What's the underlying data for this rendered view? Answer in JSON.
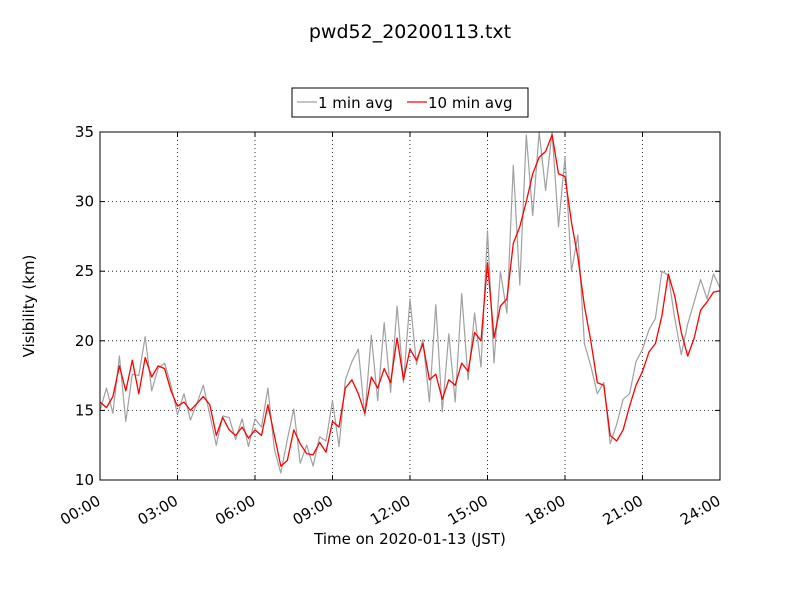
{
  "chart_data": {
    "type": "line",
    "title": "pwd52_20200113.txt",
    "xlabel": "Time on 2020-01-13 (JST)",
    "ylabel": "Visibility (km)",
    "x_unit": "hours",
    "xlim": [
      0,
      24
    ],
    "ylim": [
      10,
      35
    ],
    "grid": true,
    "legend_position": "top-center",
    "x_ticks": [
      0,
      3,
      6,
      9,
      12,
      15,
      18,
      21,
      24
    ],
    "x_tick_labels": [
      "00:00",
      "03:00",
      "06:00",
      "09:00",
      "12:00",
      "15:00",
      "18:00",
      "21:00",
      "24:00"
    ],
    "y_ticks": [
      10,
      15,
      20,
      25,
      30,
      35
    ],
    "y_tick_labels": [
      "10",
      "15",
      "20",
      "25",
      "30",
      "35"
    ],
    "series": [
      {
        "name": "1 min avg",
        "color": "#a0a0a0",
        "x": [
          0.0,
          0.25,
          0.5,
          0.75,
          1.0,
          1.25,
          1.5,
          1.75,
          2.0,
          2.25,
          2.5,
          2.75,
          3.0,
          3.25,
          3.5,
          3.75,
          4.0,
          4.25,
          4.5,
          4.75,
          5.0,
          5.25,
          5.5,
          5.75,
          6.0,
          6.25,
          6.5,
          6.75,
          7.0,
          7.25,
          7.5,
          7.75,
          8.0,
          8.25,
          8.5,
          8.75,
          9.0,
          9.25,
          9.5,
          9.75,
          10.0,
          10.25,
          10.5,
          10.75,
          11.0,
          11.25,
          11.5,
          11.75,
          12.0,
          12.25,
          12.5,
          12.75,
          13.0,
          13.25,
          13.5,
          13.75,
          14.0,
          14.25,
          14.5,
          14.75,
          15.0,
          15.25,
          15.5,
          15.75,
          16.0,
          16.25,
          16.5,
          16.75,
          17.0,
          17.25,
          17.5,
          17.75,
          18.0,
          18.25,
          18.5,
          18.75,
          19.0,
          19.25,
          19.5,
          19.75,
          20.0,
          20.25,
          20.5,
          20.75,
          21.0,
          21.25,
          21.5,
          21.75,
          22.0,
          22.25,
          22.5,
          22.75,
          23.0,
          23.25,
          23.5,
          23.75,
          24.0
        ],
        "y": [
          15.0,
          16.6,
          14.8,
          18.9,
          14.2,
          17.6,
          17.5,
          20.3,
          16.4,
          18.0,
          18.4,
          16.8,
          14.7,
          16.2,
          14.3,
          15.5,
          16.8,
          14.7,
          12.5,
          14.6,
          14.5,
          12.9,
          14.4,
          12.4,
          14.4,
          13.8,
          16.6,
          12.2,
          10.5,
          12.9,
          15.1,
          11.2,
          12.5,
          11.0,
          13.1,
          12.8,
          15.7,
          12.4,
          17.2,
          18.5,
          19.4,
          14.6,
          20.4,
          15.7,
          21.3,
          16.3,
          22.5,
          17.0,
          23.0,
          18.3,
          20.1,
          15.6,
          22.6,
          14.9,
          20.5,
          15.6,
          23.4,
          17.2,
          22.0,
          18.1,
          27.9,
          18.4,
          25.0,
          22.0,
          32.6,
          24.0,
          34.8,
          29.0,
          35.0,
          30.8,
          35.0,
          28.2,
          33.2,
          25.0,
          27.6,
          19.8,
          18.2,
          16.2,
          17.0,
          12.6,
          14.0,
          15.8,
          16.2,
          18.5,
          19.4,
          20.8,
          21.6,
          25.0,
          24.7,
          21.6,
          19.0,
          21.2,
          22.8,
          24.4,
          23.0,
          24.8,
          23.8
        ]
      },
      {
        "name": "10 min avg",
        "color": "#ff0000",
        "x": [
          0.0,
          0.25,
          0.5,
          0.75,
          1.0,
          1.25,
          1.5,
          1.75,
          2.0,
          2.25,
          2.5,
          2.75,
          3.0,
          3.25,
          3.5,
          3.75,
          4.0,
          4.25,
          4.5,
          4.75,
          5.0,
          5.25,
          5.5,
          5.75,
          6.0,
          6.25,
          6.5,
          6.75,
          7.0,
          7.25,
          7.5,
          7.75,
          8.0,
          8.25,
          8.5,
          8.75,
          9.0,
          9.25,
          9.5,
          9.75,
          10.0,
          10.25,
          10.5,
          10.75,
          11.0,
          11.25,
          11.5,
          11.75,
          12.0,
          12.25,
          12.5,
          12.75,
          13.0,
          13.25,
          13.5,
          13.75,
          14.0,
          14.25,
          14.5,
          14.75,
          15.0,
          15.25,
          15.5,
          15.75,
          16.0,
          16.25,
          16.5,
          16.75,
          17.0,
          17.25,
          17.5,
          17.75,
          18.0,
          18.25,
          18.5,
          18.75,
          19.0,
          19.25,
          19.5,
          19.75,
          20.0,
          20.25,
          20.5,
          20.75,
          21.0,
          21.25,
          21.5,
          21.75,
          22.0,
          22.25,
          22.5,
          22.75,
          23.0,
          23.25,
          23.5,
          23.75,
          24.0
        ],
        "y": [
          15.6,
          15.2,
          16.0,
          18.2,
          16.4,
          18.6,
          16.2,
          18.8,
          17.4,
          18.2,
          18.0,
          16.4,
          15.3,
          15.6,
          15.0,
          15.5,
          16.0,
          15.4,
          13.2,
          14.5,
          13.6,
          13.2,
          13.8,
          13.0,
          13.6,
          13.2,
          15.4,
          13.2,
          11.0,
          11.4,
          13.6,
          12.6,
          11.9,
          11.8,
          12.7,
          12.0,
          14.2,
          13.8,
          16.6,
          17.2,
          16.2,
          14.8,
          17.4,
          16.6,
          18.0,
          17.0,
          20.2,
          17.2,
          19.4,
          18.6,
          19.8,
          17.2,
          17.6,
          15.8,
          17.2,
          16.8,
          18.4,
          17.8,
          20.6,
          20.0,
          25.6,
          20.2,
          22.5,
          23.0,
          27.0,
          28.2,
          30.0,
          32.0,
          33.2,
          33.6,
          34.8,
          32.0,
          31.8,
          28.5,
          26.0,
          22.5,
          20.0,
          17.0,
          16.8,
          13.2,
          12.8,
          13.6,
          15.3,
          16.8,
          17.8,
          19.2,
          19.8,
          21.8,
          24.8,
          23.2,
          20.6,
          18.9,
          20.2,
          22.2,
          22.8,
          23.5,
          23.6
        ]
      }
    ]
  }
}
